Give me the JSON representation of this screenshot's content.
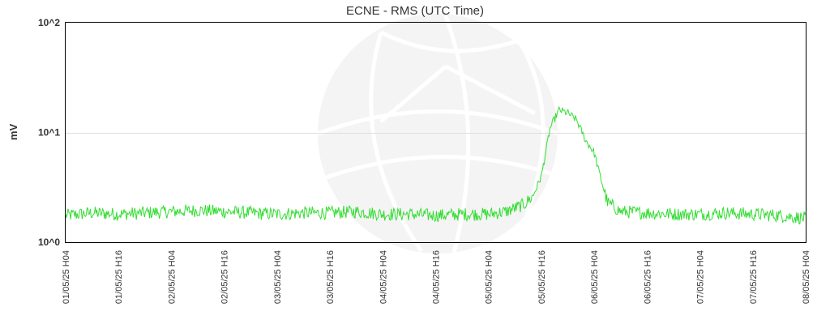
{
  "chart_data": {
    "type": "line",
    "title": "ECNE - RMS (UTC Time)",
    "ylabel": "mV",
    "xlabel": "",
    "y_scale": "log",
    "ylim": [
      1,
      100
    ],
    "y_ticks": [
      {
        "value": 1,
        "label": "10^0"
      },
      {
        "value": 10,
        "label": "10^1"
      },
      {
        "value": 100,
        "label": "10^2"
      }
    ],
    "x_tick_labels": [
      "01/05/25 H04",
      "01/05/25 H16",
      "02/05/25 H04",
      "02/05/25 H16",
      "03/05/25 H04",
      "03/05/25 H16",
      "04/05/25 H04",
      "04/05/25 H16",
      "05/05/25 H04",
      "05/05/25 H16",
      "06/05/25 H04",
      "06/05/25 H16",
      "07/05/25 H04",
      "07/05/25 H16",
      "08/05/25 H04"
    ],
    "x_unit": "hours after 01/05/25 H04",
    "grid": "horizontal",
    "line_color": "#33dd33",
    "series": [
      {
        "x": [
          0,
          6,
          12,
          18,
          24,
          30,
          36,
          42,
          48,
          54,
          60,
          66,
          72,
          78,
          84,
          90,
          96,
          100,
          104,
          106,
          108,
          110,
          112,
          114,
          116,
          118,
          119,
          120,
          121,
          123,
          126,
          132,
          138,
          144,
          150,
          156,
          162,
          168
        ],
        "values": [
          1.75,
          1.85,
          1.8,
          1.85,
          1.9,
          1.95,
          1.9,
          1.85,
          1.8,
          1.85,
          1.85,
          1.9,
          1.8,
          1.8,
          1.75,
          1.8,
          1.8,
          1.9,
          2.2,
          2.6,
          4.0,
          11.0,
          16.0,
          15.0,
          13.0,
          8.5,
          7.5,
          6.5,
          4.5,
          2.3,
          1.9,
          1.85,
          1.8,
          1.8,
          1.85,
          1.8,
          1.75,
          1.65
        ]
      }
    ]
  }
}
